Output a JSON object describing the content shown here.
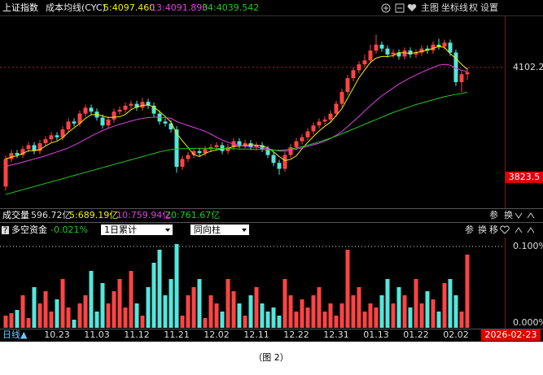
{
  "chart_data": [
    {
      "type": "candlestick",
      "title": "上证指数",
      "indicator": "成本均线(CYC)",
      "toolbar": [
        "主图",
        "坐标线",
        "权",
        "设置"
      ],
      "up_color": "#ff4444",
      "down_color": "#54e6dc",
      "categories": [
        null,
        null,
        null,
        null,
        null,
        null,
        null,
        null,
        null,
        "10.23",
        null,
        null,
        null,
        null,
        null,
        null,
        "11.03",
        null,
        null,
        null,
        null,
        null,
        null,
        "11.12",
        null,
        null,
        null,
        null,
        null,
        null,
        "11.21",
        null,
        null,
        null,
        null,
        null,
        null,
        "12.02",
        null,
        null,
        null,
        null,
        null,
        null,
        "12.11",
        null,
        null,
        null,
        null,
        null,
        null,
        "12.22",
        null,
        null,
        null,
        null,
        null,
        null,
        "12.31",
        null,
        null,
        null,
        null,
        null,
        null,
        "01.13",
        null,
        null,
        null,
        null,
        null,
        null,
        "01.22",
        null,
        null,
        null,
        null,
        null,
        null,
        "02.02",
        null,
        null
      ],
      "open": [
        3800,
        3870,
        3885,
        3880,
        3895,
        3905,
        3890,
        3910,
        3920,
        3930,
        3925,
        3945,
        3965,
        3960,
        3985,
        4000,
        3990,
        3975,
        3955,
        3970,
        3990,
        3995,
        4005,
        4010,
        4000,
        4015,
        4005,
        3985,
        3965,
        3960,
        3945,
        3850,
        3870,
        3880,
        3890,
        3885,
        3895,
        3900,
        3905,
        3890,
        3900,
        3915,
        3905,
        3910,
        3900,
        3905,
        3895,
        3880,
        3860,
        3845,
        3880,
        3900,
        3915,
        3925,
        3940,
        3955,
        3965,
        3970,
        3985,
        4010,
        4040,
        4075,
        4095,
        4110,
        4120,
        4145,
        4160,
        4150,
        4135,
        4140,
        4130,
        4145,
        4135,
        4140,
        4150,
        4145,
        4160,
        4155,
        4165,
        4140,
        4065,
        4085
      ],
      "high": [
        3878,
        3893,
        3893,
        3903,
        3913,
        3913,
        3918,
        3928,
        3938,
        3938,
        3953,
        3973,
        3973,
        3993,
        4008,
        4008,
        3998,
        3983,
        3978,
        3998,
        4003,
        4013,
        4018,
        4018,
        4025,
        4023,
        4013,
        3993,
        3973,
        3968,
        3953,
        3878,
        3888,
        3898,
        3898,
        3903,
        3908,
        3913,
        3913,
        3908,
        3923,
        3923,
        3918,
        3918,
        3913,
        3913,
        3903,
        3888,
        3868,
        3888,
        3908,
        3923,
        3933,
        3948,
        3963,
        3973,
        3978,
        3993,
        4018,
        4048,
        4083,
        4103,
        4118,
        4135,
        4160,
        4185,
        4168,
        4158,
        4148,
        4148,
        4153,
        4153,
        4148,
        4158,
        4158,
        4168,
        4175,
        4173,
        4173,
        4148,
        4093,
        4102
      ],
      "low": [
        3790,
        3862,
        3872,
        3872,
        3887,
        3882,
        3882,
        3902,
        3912,
        3917,
        3917,
        3937,
        3952,
        3952,
        3977,
        3982,
        3967,
        3947,
        3947,
        3962,
        3982,
        3987,
        3997,
        3992,
        3992,
        3997,
        3977,
        3957,
        3952,
        3937,
        3835,
        3842,
        3862,
        3872,
        3877,
        3877,
        3887,
        3892,
        3882,
        3882,
        3892,
        3897,
        3897,
        3892,
        3892,
        3887,
        3872,
        3852,
        3830,
        3837,
        3872,
        3892,
        3907,
        3917,
        3932,
        3947,
        3957,
        3962,
        3977,
        4002,
        4032,
        4067,
        4087,
        4102,
        4112,
        4137,
        4142,
        4127,
        4127,
        4122,
        4122,
        4127,
        4127,
        4132,
        4137,
        4137,
        4147,
        4147,
        4132,
        4055,
        4040,
        4070
      ],
      "close": [
        3870,
        3885,
        3880,
        3895,
        3905,
        3890,
        3910,
        3920,
        3930,
        3925,
        3945,
        3965,
        3960,
        3985,
        4000,
        3990,
        3975,
        3955,
        3970,
        3990,
        3995,
        4005,
        4010,
        4000,
        4015,
        4005,
        3985,
        3965,
        3960,
        3945,
        3850,
        3870,
        3880,
        3890,
        3885,
        3895,
        3900,
        3905,
        3890,
        3900,
        3915,
        3905,
        3910,
        3900,
        3905,
        3895,
        3880,
        3860,
        3845,
        3880,
        3900,
        3915,
        3925,
        3940,
        3955,
        3965,
        3970,
        3985,
        4010,
        4040,
        4075,
        4095,
        4110,
        4120,
        4145,
        4160,
        4150,
        4135,
        4140,
        4130,
        4145,
        4135,
        4140,
        4150,
        4145,
        4160,
        4155,
        4165,
        4140,
        4065,
        4085,
        4090
      ],
      "series": [
        {
          "name": "5:4097.460",
          "color": "#f0f000",
          "values": [
            3870,
            3875,
            3878,
            3884,
            3891,
            3891,
            3894,
            3903,
            3911,
            3915,
            3924,
            3938,
            3949,
            3960,
            3973,
            3982,
            3983,
            3979,
            3975,
            3976,
            3977,
            3983,
            3995,
            4002,
            4006,
            4007,
            4002,
            3990,
            3978,
            3963,
            3935,
            3916,
            3899,
            3881,
            3876,
            3884,
            3890,
            3893,
            3895,
            3896,
            3902,
            3903,
            3904,
            3906,
            3905,
            3903,
            3898,
            3888,
            3876,
            3866,
            3869,
            3878,
            3896,
            3912,
            3927,
            3941,
            3953,
            3963,
            3980,
            3998,
            4024,
            4050,
            4076,
            4096,
            4115,
            4126,
            4130,
            4130,
            4132,
            4140,
            4139,
            4138,
            4140,
            4143,
            4146,
            4151,
            4155,
            4153,
            4137,
            4125,
            4110,
            4097.46
          ]
        },
        {
          "name": "13:4091.890",
          "color": "#e040e0",
          "values": [
            3850,
            3855,
            3858,
            3862,
            3866,
            3870,
            3874,
            3878,
            3883,
            3888,
            3893,
            3898,
            3905,
            3912,
            3920,
            3928,
            3935,
            3942,
            3948,
            3953,
            3958,
            3962,
            3966,
            3970,
            3973,
            3975,
            3976,
            3976,
            3975,
            3973,
            3965,
            3960,
            3955,
            3950,
            3945,
            3940,
            3933,
            3925,
            3918,
            3912,
            3908,
            3905,
            3902,
            3900,
            3900,
            3898,
            3896,
            3893,
            3890,
            3890,
            3892,
            3895,
            3898,
            3902,
            3906,
            3910,
            3915,
            3922,
            3930,
            3940,
            3952,
            3965,
            3978,
            3992,
            4005,
            4018,
            4030,
            4040,
            4050,
            4060,
            4068,
            4076,
            4083,
            4090,
            4096,
            4102,
            4108,
            4110,
            4108,
            4100,
            4095,
            4091.89
          ]
        },
        {
          "name": "34:4039.542",
          "color": "#22c822",
          "values": [
            3780,
            3784,
            3788,
            3792,
            3796,
            3800,
            3804,
            3808,
            3812,
            3816,
            3820,
            3824,
            3828,
            3832,
            3836,
            3840,
            3844,
            3848,
            3852,
            3856,
            3860,
            3864,
            3868,
            3872,
            3876,
            3880,
            3884,
            3888,
            3891,
            3894,
            3895,
            3896,
            3896,
            3897,
            3897,
            3897,
            3897,
            3897,
            3896,
            3896,
            3896,
            3895,
            3895,
            3895,
            3894,
            3894,
            3893,
            3892,
            3892,
            3893,
            3895,
            3898,
            3901,
            3905,
            3909,
            3913,
            3918,
            3923,
            3928,
            3934,
            3940,
            3946,
            3952,
            3958,
            3964,
            3970,
            3976,
            3982,
            3988,
            3993,
            3998,
            4003,
            4008,
            4012,
            4016,
            4020,
            4024,
            4028,
            4031,
            4034,
            4036,
            4039.542
          ]
        }
      ],
      "ylim": [
        3747,
        4232
      ],
      "yticks": [
        4102.2
      ],
      "cursor_price": 3823.5,
      "volume_legend": [
        {
          "text": "成交量",
          "color": "#ffffff"
        },
        {
          "text": "596.72亿",
          "color": "#dddddd"
        },
        {
          "text": "5:689.19亿",
          "color": "#f0f000"
        },
        {
          "text": "10:759.94亿",
          "color": "#e040e0"
        },
        {
          "text": "20:761.67亿",
          "color": "#22c822"
        }
      ],
      "volume_tools": [
        "参",
        "换"
      ],
      "period_label": "日线▲",
      "cursor_date": "2026-02-23"
    },
    {
      "type": "bar",
      "help": "?",
      "title": "多空资金",
      "value_label": "-0.021%",
      "dropdowns": [
        "1日累计",
        "同向柱"
      ],
      "tools": [
        "参",
        "换",
        "移"
      ],
      "values": [
        0.015,
        0.018,
        0.022,
        0.04,
        0.012,
        0.05,
        0.03,
        0.045,
        0.02,
        0.035,
        0.06,
        0.025,
        0.01,
        0.03,
        0.04,
        0.07,
        0.02,
        0.055,
        0.03,
        0.045,
        0.06,
        0.025,
        0.07,
        0.03,
        0.015,
        0.05,
        0.08,
        0.096,
        0.04,
        0.06,
        0.103,
        0.015,
        0.04,
        0.05,
        0.06,
        0.012,
        0.04,
        0.03,
        0.02,
        0.06,
        0.045,
        0.03,
        0.015,
        0.04,
        0.05,
        0.03,
        0.02,
        0.025,
        0.015,
        0.06,
        0.04,
        0.02,
        0.035,
        0.025,
        0.04,
        0.05,
        0.02,
        0.03,
        0.015,
        0.03,
        0.096,
        0.04,
        0.05,
        0.02,
        0.03,
        0.025,
        0.04,
        0.06,
        0.03,
        0.05,
        0.04,
        0.025,
        0.06,
        0.03,
        0.045,
        0.035,
        0.02,
        0.055,
        0.06,
        0.04,
        0.02,
        0.09
      ],
      "ylim": [
        0,
        0.11
      ],
      "yticks": [
        {
          "value": 0,
          "label": "0.000%"
        },
        {
          "value": 0.1,
          "label": "0.100%"
        }
      ]
    }
  ],
  "caption": "（图 2）"
}
